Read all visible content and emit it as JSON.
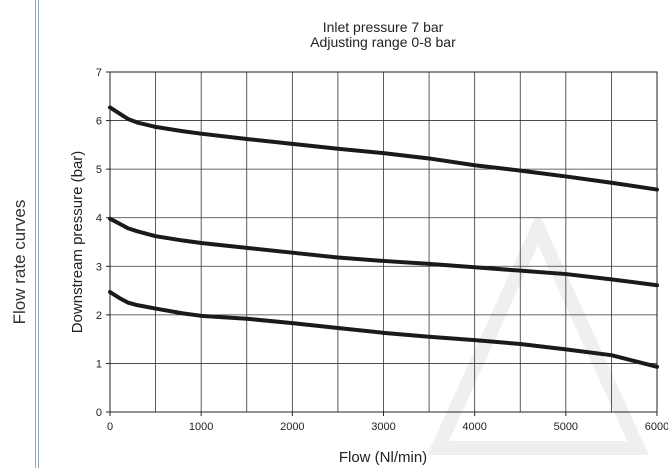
{
  "side_label": "Flow rate curves",
  "chart_data": {
    "type": "line",
    "title": "Inlet pressure 7 bar",
    "subtitle": "Adjusting range 0-8 bar",
    "xlabel": "Flow (Nl/min)",
    "ylabel": "Downstream pressure (bar)",
    "xlim": [
      0,
      6000
    ],
    "ylim": [
      0,
      7
    ],
    "x_ticks": [
      0,
      1000,
      2000,
      3000,
      4000,
      5000,
      6000
    ],
    "y_ticks": [
      0,
      1,
      2,
      3,
      4,
      5,
      6,
      7
    ],
    "grid": true,
    "series": [
      {
        "x": [
          0,
          100,
          200,
          300,
          500,
          800,
          1000,
          1500,
          2000,
          2500,
          3000,
          3500,
          4000,
          4500,
          5000,
          5500,
          6000
        ],
        "values": [
          6.27,
          6.15,
          6.03,
          5.96,
          5.87,
          5.78,
          5.73,
          5.62,
          5.52,
          5.42,
          5.33,
          5.22,
          5.08,
          4.97,
          4.85,
          4.72,
          4.58
        ]
      },
      {
        "x": [
          0,
          100,
          200,
          300,
          500,
          800,
          1000,
          1500,
          2000,
          2500,
          3000,
          3500,
          4000,
          4500,
          5000,
          5500,
          6000
        ],
        "values": [
          3.98,
          3.88,
          3.78,
          3.72,
          3.62,
          3.53,
          3.48,
          3.38,
          3.28,
          3.18,
          3.11,
          3.05,
          2.98,
          2.91,
          2.84,
          2.73,
          2.61
        ]
      },
      {
        "x": [
          0,
          100,
          200,
          300,
          500,
          800,
          1000,
          1500,
          2000,
          2500,
          3000,
          3500,
          4000,
          4500,
          5000,
          5500,
          6000
        ],
        "values": [
          2.47,
          2.35,
          2.25,
          2.2,
          2.13,
          2.03,
          1.98,
          1.92,
          1.83,
          1.73,
          1.63,
          1.55,
          1.48,
          1.4,
          1.29,
          1.17,
          0.93
        ]
      }
    ],
    "line_color": "#1a1a1a",
    "grid_color": "#333333"
  }
}
